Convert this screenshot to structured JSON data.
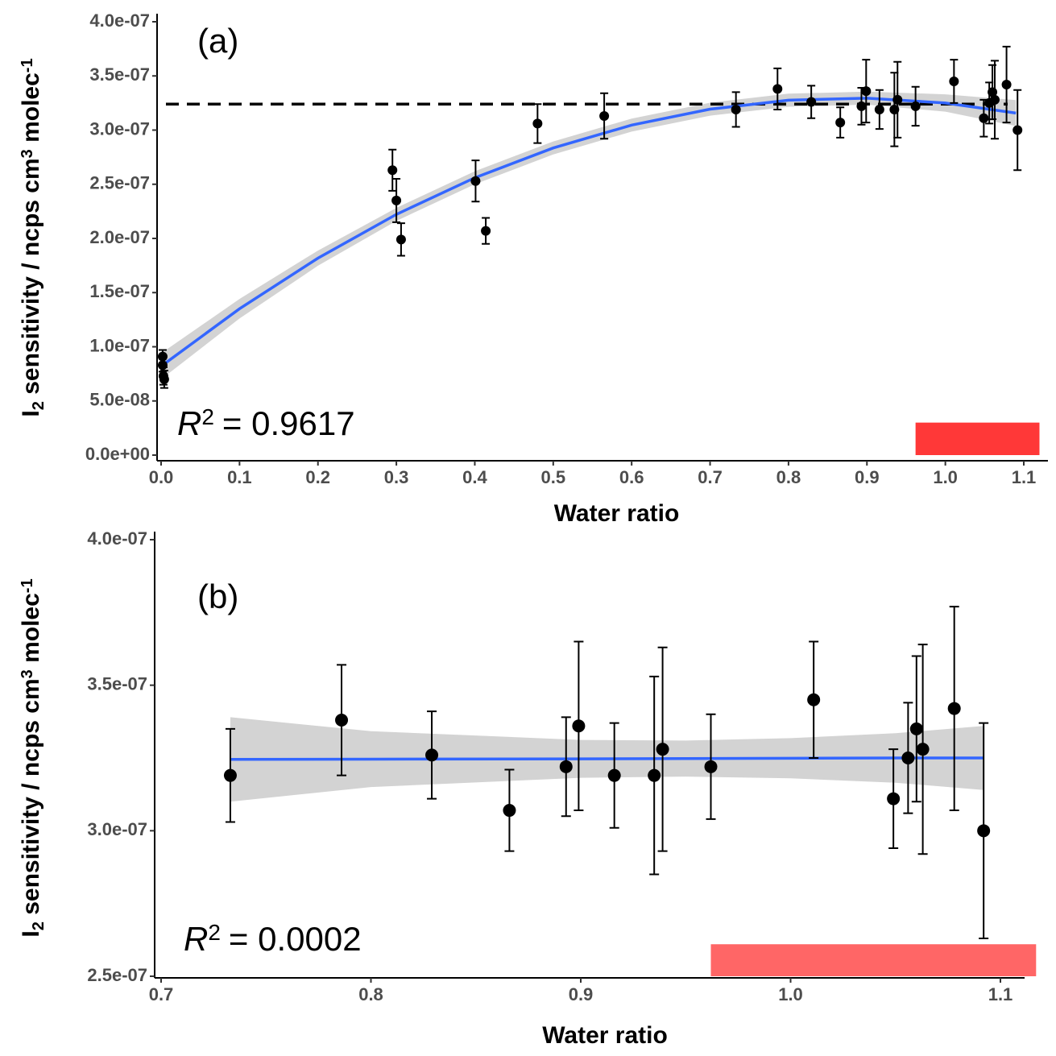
{
  "chart_data": [
    {
      "type": "scatter",
      "panel_label": "(a)",
      "r2": {
        "symbol": "R",
        "power": "2",
        "text": "= 0.9617"
      },
      "x_label": "Water ratio",
      "y_label": [
        "I",
        "2",
        " sensitivity / ncps cm",
        "3",
        " molec",
        "-1"
      ],
      "xlim": [
        0,
        1.1
      ],
      "ylim": [
        0,
        4e-07
      ],
      "xticks": [
        {
          "value": 0,
          "label": "0.0"
        },
        0.1,
        0.2,
        0.3,
        0.4,
        0.5,
        0.6,
        0.7,
        0.8,
        0.9,
        {
          "value": 1,
          "label": "1.0"
        },
        1.1
      ],
      "yticks": [
        {
          "value": 0,
          "label": "0.0e+00"
        },
        {
          "value": 5e-08,
          "label": "5.0e-08"
        },
        {
          "value": 1e-07,
          "label": "1.0e-07"
        },
        {
          "value": 1.5e-07,
          "label": "1.5e-07"
        },
        {
          "value": 2e-07,
          "label": "2.0e-07"
        },
        {
          "value": 2.5e-07,
          "label": "2.5e-07"
        },
        {
          "value": 3e-07,
          "label": "3.0e-07"
        },
        {
          "value": 3.5e-07,
          "label": "3.5e-07"
        },
        {
          "value": 4e-07,
          "label": "4.0e-07"
        }
      ],
      "points": {
        "color": "#000000",
        "x": [
          0.002,
          0.002,
          0.003,
          0.004,
          0.295,
          0.3,
          0.306,
          0.401,
          0.414,
          0.48,
          0.565,
          0.733,
          0.786,
          0.829,
          0.866,
          0.893,
          0.899,
          0.916,
          0.935,
          0.939,
          0.962,
          1.011,
          1.049,
          1.056,
          1.06,
          1.063,
          1.078,
          1.092
        ],
        "values": [
          9.1e-08,
          8.3e-08,
          7.3e-08,
          7e-08,
          2.63e-07,
          2.35e-07,
          1.99e-07,
          2.53e-07,
          2.07e-07,
          3.06e-07,
          3.13e-07,
          3.19e-07,
          3.38e-07,
          3.26e-07,
          3.07e-07,
          3.22e-07,
          3.36e-07,
          3.19e-07,
          3.19e-07,
          3.28e-07,
          3.22e-07,
          3.45e-07,
          3.11e-07,
          3.25e-07,
          3.35e-07,
          3.28e-07,
          3.42e-07,
          3e-07
        ],
        "errors": [
          6e-09,
          6e-09,
          8e-09,
          8e-09,
          1.9e-08,
          2e-08,
          1.5e-08,
          1.9e-08,
          1.2e-08,
          1.8e-08,
          2.1e-08,
          1.6e-08,
          1.9e-08,
          1.5e-08,
          1.4e-08,
          1.7e-08,
          2.9e-08,
          1.8e-08,
          3.4e-08,
          3.5e-08,
          1.8e-08,
          2e-08,
          1.7e-08,
          1.9e-08,
          2.5e-08,
          3.6e-08,
          3.5e-08,
          3.7e-08
        ]
      },
      "fit": {
        "color": "#3366ff",
        "band_color": "#d3d3d3",
        "x": [
          0,
          0.1,
          0.2,
          0.3,
          0.4,
          0.5,
          0.6,
          0.7,
          0.8,
          0.9,
          1.0,
          1.09
        ],
        "values": [
          8.2e-08,
          1.351e-07,
          1.818e-07,
          2.222e-07,
          2.56e-07,
          2.835e-07,
          3.046e-07,
          3.193e-07,
          3.276e-07,
          3.295e-07,
          3.25e-07,
          3.157e-07
        ],
        "lower": [
          7e-08,
          1.261e-07,
          1.748e-07,
          2.162e-07,
          2.5e-07,
          2.775e-07,
          2.986e-07,
          3.133e-07,
          3.216e-07,
          3.235e-07,
          3.17e-07,
          3.037e-07
        ],
        "upper": [
          9.4e-08,
          1.441e-07,
          1.888e-07,
          2.282e-07,
          2.62e-07,
          2.895e-07,
          3.106e-07,
          3.253e-07,
          3.336e-07,
          3.355e-07,
          3.33e-07,
          3.277e-07
        ]
      },
      "reference_line": {
        "value": 3.24e-07,
        "color": "#000000",
        "dashed": true
      },
      "highlight": {
        "x": [
          0.962,
          1.12
        ],
        "y": [
          0,
          3e-08
        ],
        "color": "#ff3838"
      }
    },
    {
      "type": "scatter",
      "panel_label": "(b)",
      "r2": {
        "symbol": "R",
        "power": "2",
        "text": "= 0.0002"
      },
      "x_label": "Water ratio",
      "y_label": [
        "I",
        "2",
        " sensitivity / ncps cm",
        "3",
        " molec",
        "-1"
      ],
      "xlim": [
        0.7,
        1.1
      ],
      "ylim": [
        2.5e-07,
        4e-07
      ],
      "xticks": [
        0.7,
        0.8,
        0.9,
        {
          "value": 1,
          "label": "1.0"
        },
        1.1
      ],
      "yticks": [
        {
          "value": 2.5e-07,
          "label": "2.5e-07"
        },
        {
          "value": 3e-07,
          "label": "3.0e-07"
        },
        {
          "value": 3.5e-07,
          "label": "3.5e-07"
        },
        {
          "value": 4e-07,
          "label": "4.0e-07"
        }
      ],
      "points": {
        "color": "#000000",
        "x": [
          0.733,
          0.786,
          0.829,
          0.866,
          0.893,
          0.899,
          0.916,
          0.935,
          0.939,
          0.962,
          1.011,
          1.049,
          1.056,
          1.06,
          1.063,
          1.078,
          1.092
        ],
        "values": [
          3.19e-07,
          3.38e-07,
          3.26e-07,
          3.07e-07,
          3.22e-07,
          3.36e-07,
          3.19e-07,
          3.19e-07,
          3.28e-07,
          3.22e-07,
          3.45e-07,
          3.11e-07,
          3.25e-07,
          3.35e-07,
          3.28e-07,
          3.42e-07,
          3e-07
        ],
        "errors": [
          1.6e-08,
          1.9e-08,
          1.5e-08,
          1.4e-08,
          1.7e-08,
          2.9e-08,
          1.8e-08,
          3.4e-08,
          3.5e-08,
          1.8e-08,
          2e-08,
          1.7e-08,
          1.9e-08,
          2.5e-08,
          3.6e-08,
          3.5e-08,
          3.7e-08
        ]
      },
      "fit": {
        "color": "#3366ff",
        "band_color": "#d3d3d3",
        "x": [
          0.733,
          0.8,
          0.9,
          0.95,
          1.0,
          1.05,
          1.092
        ],
        "values": [
          3.245e-07,
          3.246e-07,
          3.247e-07,
          3.248e-07,
          3.249e-07,
          3.25e-07,
          3.25e-07
        ],
        "lower": [
          3.1e-07,
          3.15e-07,
          3.182e-07,
          3.186e-07,
          3.18e-07,
          3.165e-07,
          3.14e-07
        ],
        "upper": [
          3.39e-07,
          3.342e-07,
          3.312e-07,
          3.31e-07,
          3.318e-07,
          3.335e-07,
          3.36e-07
        ]
      },
      "highlight": {
        "x": [
          0.962,
          1.117
        ],
        "y": [
          2.5e-07,
          2.61e-07
        ],
        "color": "#ff6666"
      }
    }
  ]
}
